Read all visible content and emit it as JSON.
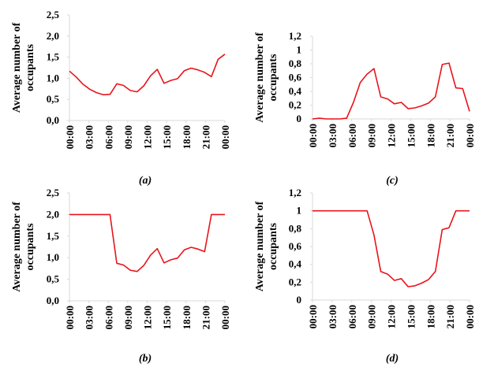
{
  "chart_data": [
    {
      "type": "line",
      "panel": "a",
      "caption": "(a)",
      "ylabel": [
        "Average number of",
        "occupants"
      ],
      "ylim": [
        0,
        2.5
      ],
      "yticks": [
        "0,0",
        "0,5",
        "1,0",
        "1,5",
        "2,0",
        "2,5"
      ],
      "xticks": [
        "00:00",
        "03:00",
        "06:00",
        "09:00",
        "12:00",
        "15:00",
        "18:00",
        "21:00",
        "00:00"
      ],
      "x": [
        0,
        1,
        2,
        3,
        4,
        5,
        6,
        7,
        8,
        9,
        10,
        11,
        12,
        13,
        14,
        15,
        16,
        17,
        18,
        19,
        20,
        21,
        22,
        23
      ],
      "series": [
        {
          "values": [
            1.17,
            1.03,
            0.86,
            0.74,
            0.66,
            0.61,
            0.62,
            0.87,
            0.83,
            0.71,
            0.68,
            0.82,
            1.06,
            1.21,
            0.88,
            0.95,
            0.99,
            1.18,
            1.24,
            1.2,
            1.14,
            1.04,
            1.45,
            1.57
          ],
          "color": "#e8141b"
        }
      ]
    },
    {
      "type": "line",
      "panel": "c",
      "caption": "(c)",
      "ylabel": [
        "Average number of",
        "occupants"
      ],
      "ylim": [
        0,
        1.2
      ],
      "yticks": [
        "0",
        "0,2",
        "0,4",
        "0,6",
        "0,8",
        "1",
        "1,2"
      ],
      "xticks": [
        "00:00",
        "03:00",
        "06:00",
        "09:00",
        "12:00",
        "15:00",
        "18:00",
        "21:00",
        "00:00"
      ],
      "x": [
        0,
        1,
        2,
        3,
        4,
        5,
        6,
        7,
        8,
        9,
        10,
        11,
        12,
        13,
        14,
        15,
        16,
        17,
        18,
        19,
        20,
        21,
        22,
        23
      ],
      "series": [
        {
          "values": [
            0.0,
            0.01,
            0.0,
            0.0,
            0.0,
            0.01,
            0.24,
            0.53,
            0.65,
            0.73,
            0.32,
            0.29,
            0.22,
            0.24,
            0.15,
            0.16,
            0.19,
            0.23,
            0.32,
            0.79,
            0.81,
            0.45,
            0.44,
            0.11
          ],
          "color": "#e8141b"
        }
      ]
    },
    {
      "type": "line",
      "panel": "b",
      "caption": "(b)",
      "ylabel": [
        "Average number of",
        "occupants"
      ],
      "ylim": [
        0,
        2.5
      ],
      "yticks": [
        "0,0",
        "0,5",
        "1,0",
        "1,5",
        "2,0",
        "2,5"
      ],
      "xticks": [
        "00:00",
        "03:00",
        "06:00",
        "09:00",
        "12:00",
        "15:00",
        "18:00",
        "21:00",
        "00:00"
      ],
      "x": [
        0,
        1,
        2,
        3,
        4,
        5,
        6,
        7,
        8,
        9,
        10,
        11,
        12,
        13,
        14,
        15,
        16,
        17,
        18,
        19,
        20,
        21,
        22,
        23
      ],
      "series": [
        {
          "values": [
            2.0,
            2.0,
            2.0,
            2.0,
            2.0,
            2.0,
            2.0,
            0.87,
            0.83,
            0.71,
            0.68,
            0.82,
            1.06,
            1.21,
            0.88,
            0.95,
            0.99,
            1.18,
            1.24,
            1.2,
            1.14,
            2.0,
            2.0,
            2.0
          ],
          "color": "#e8141b"
        }
      ]
    },
    {
      "type": "line",
      "panel": "d",
      "caption": "(d)",
      "ylabel": [
        "Average number of",
        "occupants"
      ],
      "ylim": [
        0,
        1.2
      ],
      "yticks": [
        "0",
        "0,2",
        "0,4",
        "0,6",
        "0,8",
        "1",
        "1,2"
      ],
      "xticks": [
        "00:00",
        "03:00",
        "06:00",
        "09:00",
        "12:00",
        "15:00",
        "18:00",
        "21:00",
        "00:00"
      ],
      "x": [
        0,
        1,
        2,
        3,
        4,
        5,
        6,
        7,
        8,
        9,
        10,
        11,
        12,
        13,
        14,
        15,
        16,
        17,
        18,
        19,
        20,
        21,
        22,
        23
      ],
      "series": [
        {
          "values": [
            1.0,
            1.0,
            1.0,
            1.0,
            1.0,
            1.0,
            1.0,
            1.0,
            1.0,
            0.73,
            0.32,
            0.29,
            0.22,
            0.24,
            0.15,
            0.16,
            0.19,
            0.23,
            0.32,
            0.79,
            0.81,
            1.0,
            1.0,
            1.0
          ],
          "color": "#e8141b"
        }
      ]
    }
  ]
}
